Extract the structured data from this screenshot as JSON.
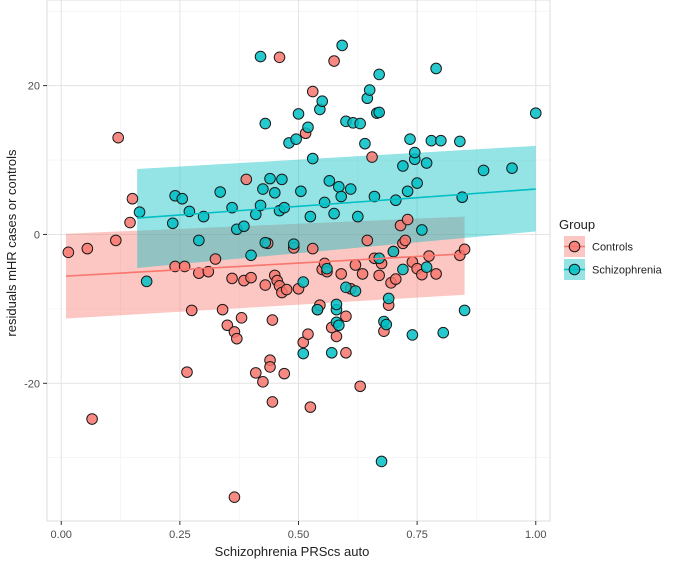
{
  "chart_data": {
    "type": "scatter",
    "title": "",
    "xlabel": "Schizophrenia PRScs auto",
    "ylabel": "residuals mHR cases or controls",
    "xlim": [
      -0.03,
      1.03
    ],
    "ylim": [
      -38.5,
      31.5
    ],
    "x_ticks": [
      0.0,
      0.25,
      0.5,
      0.75,
      1.0
    ],
    "x_tick_labels": [
      "0.00",
      "0.25",
      "0.50",
      "0.75",
      "1.00"
    ],
    "y_ticks": [
      -20,
      0,
      20
    ],
    "y_tick_labels": [
      "-20",
      "0",
      "20"
    ],
    "grid": true,
    "legend": {
      "title": "Group",
      "position": "right"
    },
    "series": [
      {
        "name": "Controls",
        "color": "#F8766D",
        "band_color": "#F8766D",
        "fit": {
          "x": [
            0.01,
            0.85
          ],
          "y": [
            -5.6,
            -2.6
          ]
        },
        "band": {
          "x": [
            0.01,
            0.85
          ],
          "upper": [
            0.1,
            2.4
          ],
          "lower": [
            -11.3,
            -8.1
          ]
        },
        "points": [
          [
            0.015,
            -2.4
          ],
          [
            0.055,
            -1.9
          ],
          [
            0.065,
            -24.8
          ],
          [
            0.12,
            13.0
          ],
          [
            0.115,
            -0.8
          ],
          [
            0.15,
            4.8
          ],
          [
            0.145,
            1.6
          ],
          [
            0.24,
            -4.3
          ],
          [
            0.26,
            -4.3
          ],
          [
            0.265,
            -18.5
          ],
          [
            0.275,
            -10.2
          ],
          [
            0.29,
            -5.2
          ],
          [
            0.31,
            -5.0
          ],
          [
            0.325,
            -3.3
          ],
          [
            0.34,
            -10.1
          ],
          [
            0.35,
            -12.2
          ],
          [
            0.36,
            -5.9
          ],
          [
            0.365,
            -13.1
          ],
          [
            0.37,
            -14.0
          ],
          [
            0.38,
            -11.2
          ],
          [
            0.365,
            -35.3
          ],
          [
            0.385,
            -6.2
          ],
          [
            0.39,
            7.4
          ],
          [
            0.4,
            -5.8
          ],
          [
            0.41,
            -18.6
          ],
          [
            0.425,
            -19.8
          ],
          [
            0.43,
            -6.8
          ],
          [
            0.435,
            -1.2
          ],
          [
            0.44,
            -16.9
          ],
          [
            0.44,
            -17.8
          ],
          [
            0.445,
            -11.5
          ],
          [
            0.445,
            -22.5
          ],
          [
            0.45,
            -5.5
          ],
          [
            0.455,
            -6.2
          ],
          [
            0.46,
            -6.9
          ],
          [
            0.465,
            -7.8
          ],
          [
            0.47,
            -18.7
          ],
          [
            0.475,
            -7.4
          ],
          [
            0.46,
            23.8
          ],
          [
            0.49,
            -1.8
          ],
          [
            0.5,
            -7.3
          ],
          [
            0.51,
            -14.5
          ],
          [
            0.515,
            13.6
          ],
          [
            0.52,
            -13.4
          ],
          [
            0.525,
            -23.2
          ],
          [
            0.53,
            -1.9
          ],
          [
            0.54,
            -10.1
          ],
          [
            0.545,
            -9.5
          ],
          [
            0.55,
            -4.7
          ],
          [
            0.555,
            -3.9
          ],
          [
            0.56,
            -5.0
          ],
          [
            0.575,
            23.3
          ],
          [
            0.58,
            -13.7
          ],
          [
            0.59,
            -5.3
          ],
          [
            0.6,
            -15.9
          ],
          [
            0.61,
            -7.3
          ],
          [
            0.62,
            -4.1
          ],
          [
            0.63,
            -20.4
          ],
          [
            0.635,
            -5.3
          ],
          [
            0.645,
            -0.8
          ],
          [
            0.655,
            10.4
          ],
          [
            0.66,
            -3.2
          ],
          [
            0.67,
            -5.5
          ],
          [
            0.675,
            -3.9
          ],
          [
            0.68,
            -13.0
          ],
          [
            0.69,
            -9.5
          ],
          [
            0.695,
            -6.5
          ],
          [
            0.7,
            -2.3
          ],
          [
            0.705,
            -6.0
          ],
          [
            0.715,
            1.2
          ],
          [
            0.72,
            -1.2
          ],
          [
            0.725,
            -0.8
          ],
          [
            0.73,
            2.0
          ],
          [
            0.74,
            -3.7
          ],
          [
            0.75,
            -4.6
          ],
          [
            0.76,
            -5.4
          ],
          [
            0.775,
            -2.9
          ],
          [
            0.79,
            -5.3
          ],
          [
            0.84,
            -2.8
          ],
          [
            0.85,
            -2.0
          ],
          [
            0.53,
            19.2
          ],
          [
            0.57,
            -12.5
          ],
          [
            0.6,
            -11.0
          ]
        ]
      },
      {
        "name": "Schizophrenia",
        "color": "#00BFC4",
        "band_color": "#00BFC4",
        "fit": {
          "x": [
            0.16,
            1.0
          ],
          "y": [
            2.2,
            6.1
          ]
        },
        "band": {
          "x": [
            0.16,
            1.0
          ],
          "upper": [
            8.8,
            11.9
          ],
          "lower": [
            -4.5,
            0.4
          ]
        },
        "points": [
          [
            0.165,
            3.0
          ],
          [
            0.18,
            -6.3
          ],
          [
            0.235,
            1.5
          ],
          [
            0.24,
            5.2
          ],
          [
            0.255,
            4.8
          ],
          [
            0.27,
            3.1
          ],
          [
            0.29,
            -0.8
          ],
          [
            0.3,
            2.4
          ],
          [
            0.335,
            5.7
          ],
          [
            0.36,
            3.6
          ],
          [
            0.37,
            0.7
          ],
          [
            0.385,
            1.1
          ],
          [
            0.4,
            -2.8
          ],
          [
            0.41,
            2.7
          ],
          [
            0.42,
            3.9
          ],
          [
            0.425,
            6.1
          ],
          [
            0.42,
            23.9
          ],
          [
            0.43,
            -1.1
          ],
          [
            0.43,
            14.9
          ],
          [
            0.44,
            7.5
          ],
          [
            0.45,
            5.6
          ],
          [
            0.46,
            3.2
          ],
          [
            0.465,
            7.4
          ],
          [
            0.47,
            3.6
          ],
          [
            0.48,
            12.3
          ],
          [
            0.49,
            -1.3
          ],
          [
            0.495,
            12.8
          ],
          [
            0.5,
            16.2
          ],
          [
            0.505,
            5.8
          ],
          [
            0.51,
            -16.0
          ],
          [
            0.51,
            -6.4
          ],
          [
            0.52,
            14.4
          ],
          [
            0.525,
            2.4
          ],
          [
            0.53,
            10.2
          ],
          [
            0.54,
            -10.1
          ],
          [
            0.545,
            16.8
          ],
          [
            0.55,
            17.9
          ],
          [
            0.555,
            4.3
          ],
          [
            0.56,
            -4.6
          ],
          [
            0.565,
            7.2
          ],
          [
            0.57,
            -15.9
          ],
          [
            0.575,
            2.8
          ],
          [
            0.58,
            -10.1
          ],
          [
            0.58,
            -11.8
          ],
          [
            0.585,
            6.4
          ],
          [
            0.59,
            5.1
          ],
          [
            0.592,
            25.4
          ],
          [
            0.6,
            15.2
          ],
          [
            0.6,
            -7.1
          ],
          [
            0.61,
            6.1
          ],
          [
            0.615,
            15.0
          ],
          [
            0.62,
            -7.6
          ],
          [
            0.625,
            2.4
          ],
          [
            0.63,
            14.9
          ],
          [
            0.64,
            12.2
          ],
          [
            0.645,
            18.3
          ],
          [
            0.65,
            19.4
          ],
          [
            0.66,
            5.1
          ],
          [
            0.665,
            16.3
          ],
          [
            0.67,
            16.4
          ],
          [
            0.67,
            -3.2
          ],
          [
            0.67,
            21.5
          ],
          [
            0.675,
            -30.5
          ],
          [
            0.68,
            -11.7
          ],
          [
            0.685,
            -12.1
          ],
          [
            0.69,
            -8.6
          ],
          [
            0.7,
            -2.3
          ],
          [
            0.705,
            4.6
          ],
          [
            0.72,
            9.2
          ],
          [
            0.72,
            -4.7
          ],
          [
            0.73,
            5.8
          ],
          [
            0.735,
            12.8
          ],
          [
            0.74,
            -13.5
          ],
          [
            0.745,
            10.1
          ],
          [
            0.745,
            11.0
          ],
          [
            0.75,
            6.9
          ],
          [
            0.76,
            0.6
          ],
          [
            0.77,
            -4.4
          ],
          [
            0.77,
            9.6
          ],
          [
            0.78,
            12.6
          ],
          [
            0.79,
            22.3
          ],
          [
            0.8,
            12.6
          ],
          [
            0.805,
            -13.2
          ],
          [
            0.84,
            12.5
          ],
          [
            0.845,
            5.0
          ],
          [
            0.85,
            -10.2
          ],
          [
            0.89,
            8.6
          ],
          [
            0.95,
            8.9
          ],
          [
            1.0,
            16.3
          ],
          [
            0.585,
            -12.2
          ],
          [
            0.58,
            -9.4
          ]
        ]
      }
    ]
  }
}
